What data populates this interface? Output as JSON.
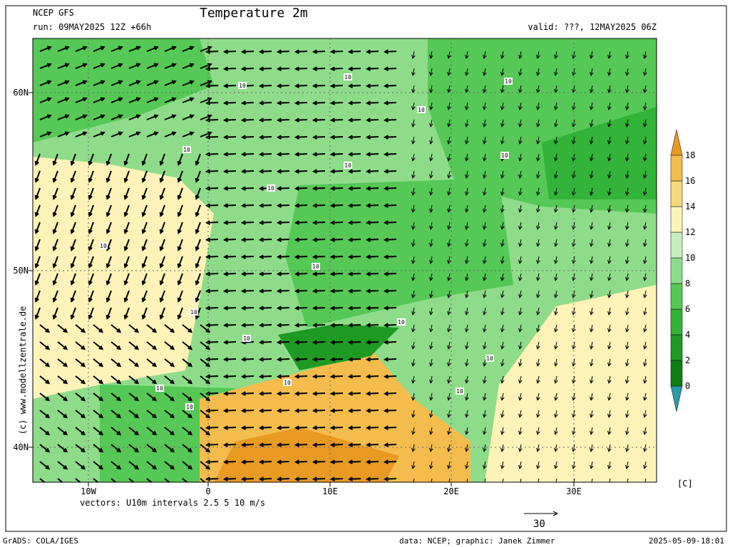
{
  "header": {
    "model": "NCEP GFS",
    "title": "Temperature 2m",
    "run": "run: 09MAY2025 12Z +66h",
    "valid": "valid: ???, 12MAY2025 06Z"
  },
  "map": {
    "lat_labels": [
      "60N",
      "50N",
      "40N"
    ],
    "lon_labels": [
      "10W",
      "0",
      "10E",
      "20E",
      "30E"
    ],
    "contour_labels": [
      "10",
      "10",
      "10",
      "10",
      "10",
      "10",
      "10",
      "10",
      "10",
      "10",
      "10",
      "10",
      "10",
      "10",
      "10",
      "10",
      "10",
      "10"
    ],
    "watermark": "(c) www.modellzentrale.de"
  },
  "colorbar": {
    "levels": [
      0,
      2,
      4,
      6,
      8,
      10,
      12,
      14,
      16,
      18
    ],
    "colors": [
      "#2a9aaa",
      "#0f7f14",
      "#1e9a22",
      "#33b337",
      "#55c855",
      "#8edc8a",
      "#c4efbc",
      "#fdf3b8",
      "#f8d878",
      "#f4bc4c",
      "#e89a22"
    ],
    "unit": "[C]"
  },
  "footer": {
    "vectors": "vectors: U10m intervals 2.5 5 10 m/s",
    "vector_scale": "30",
    "software": "GrADS: COLA/IGES",
    "credits": "data: NCEP; graphic: Janek Zimmer",
    "timestamp": "2025-05-09-18:01"
  }
}
